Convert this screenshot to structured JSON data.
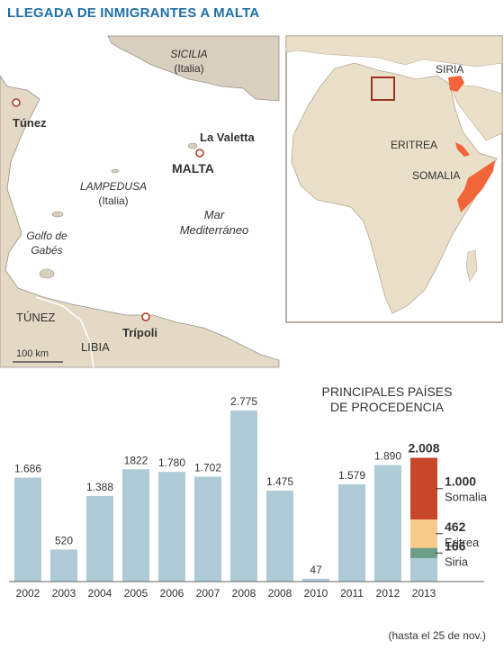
{
  "title": "LLEGADA DE INMIGRANTES A MALTA",
  "map": {
    "sicilia": "SICILIA",
    "sicilia_country": "(Italia)",
    "tunez_city": "Túnez",
    "la_valetta": "La Valetta",
    "malta": "MALTA",
    "lampedusa": "LAMPEDUSA",
    "lampedusa_country": "(Italia)",
    "golfo_line1": "Golfo de",
    "golfo_line2": "Gabés",
    "mar_line1": "Mar",
    "mar_line2": "Mediterráneo",
    "tunez_country": "TÚNEZ",
    "libia": "LIBIA",
    "tripoli": "Trípoli",
    "scale": "100 km"
  },
  "inset": {
    "siria": "SIRIA",
    "eritrea": "ERITREA",
    "somalia": "SOMALIA"
  },
  "colors": {
    "title": "#1f6fa6",
    "bar": "#aecbd6",
    "somalia": "#c8472a",
    "eritrea": "#f7cb8b",
    "siria": "#6a9e86",
    "highlight": "#f2643a",
    "land": "#eadfc9",
    "sea": "#ffffff"
  },
  "chart_data": {
    "type": "bar",
    "title": "PRINCIPALES PAÍSES DE PROCEDENCIA",
    "categories": [
      "2002",
      "2003",
      "2004",
      "2005",
      "2006",
      "2007",
      "2008",
      "2008",
      "2010",
      "2011",
      "2012",
      "2013"
    ],
    "value_labels": [
      "1.686",
      "520",
      "1.388",
      "1822",
      "1.780",
      "1.702",
      "2.775",
      "1.475",
      "47",
      "1.579",
      "1.890",
      "2.008"
    ],
    "values": [
      1686,
      520,
      1388,
      1822,
      1780,
      1702,
      2775,
      1475,
      47,
      1579,
      1890,
      2008
    ],
    "ylim": [
      0,
      2775
    ],
    "note": "(hasta el 25 de nov.)",
    "breakdown_2013": [
      {
        "value": 1000,
        "label": "1.000",
        "name": "Somalia"
      },
      {
        "value": 462,
        "label": "462",
        "name": "Eritrea"
      },
      {
        "value": 166,
        "label": "166",
        "name": "Siria"
      }
    ]
  }
}
